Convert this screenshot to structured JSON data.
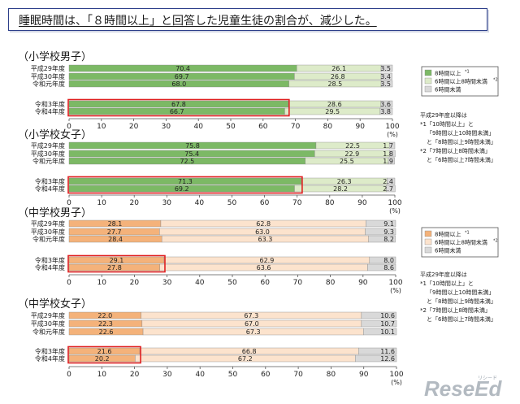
{
  "header": {
    "title": "睡眠時間は、「８時間以上」と回答した児童生徒の割合が、減少した。"
  },
  "chart_data": [
    {
      "type": "bar",
      "stacked": true,
      "orientation": "horizontal",
      "title": "（小学校男子）",
      "categories": [
        "平成29年度",
        "平成30年度",
        "令和元年度",
        "令和3年度",
        "令和4年度"
      ],
      "series": [
        {
          "name": "8時間以上",
          "values": [
            70.4,
            69.7,
            68.0,
            67.8,
            66.7
          ]
        },
        {
          "name": "6時間以上8時間未満",
          "values": [
            26.1,
            26.8,
            28.5,
            28.6,
            29.5
          ]
        },
        {
          "name": "6時間未満",
          "values": [
            3.5,
            3.4,
            3.5,
            3.6,
            3.8
          ]
        }
      ],
      "xlim": [
        0,
        100
      ],
      "xticks": [
        "0",
        "10",
        "20",
        "30",
        "40",
        "50",
        "60",
        "70",
        "80",
        "90",
        "100"
      ],
      "xunit": "(%)",
      "highlighted": [
        "令和3年度",
        "令和4年度"
      ]
    },
    {
      "type": "bar",
      "stacked": true,
      "orientation": "horizontal",
      "title": "（小学校女子）",
      "categories": [
        "平成29年度",
        "平成30年度",
        "令和元年度",
        "令和3年度",
        "令和4年度"
      ],
      "series": [
        {
          "name": "8時間以上",
          "values": [
            75.8,
            75.4,
            72.5,
            71.3,
            69.2
          ]
        },
        {
          "name": "6時間以上8時間未満",
          "values": [
            22.5,
            22.9,
            25.5,
            26.3,
            28.2
          ]
        },
        {
          "name": "6時間未満",
          "values": [
            1.7,
            1.8,
            1.9,
            2.4,
            2.7
          ]
        }
      ],
      "xlim": [
        0,
        100
      ],
      "xticks": [
        "0",
        "10",
        "20",
        "30",
        "40",
        "50",
        "60",
        "70",
        "80",
        "90",
        "100"
      ],
      "xunit": "(%)",
      "highlighted": [
        "令和3年度",
        "令和4年度"
      ]
    },
    {
      "type": "bar",
      "stacked": true,
      "orientation": "horizontal",
      "title": "（中学校男子）",
      "categories": [
        "平成29年度",
        "平成30年度",
        "令和元年度",
        "令和3年度",
        "令和4年度"
      ],
      "series": [
        {
          "name": "8時間以上",
          "values": [
            28.1,
            27.7,
            28.4,
            29.1,
            27.8
          ]
        },
        {
          "name": "6時間以上8時間未満",
          "values": [
            62.8,
            63.0,
            63.3,
            62.9,
            63.6
          ]
        },
        {
          "name": "6時間未満",
          "values": [
            9.1,
            9.3,
            8.2,
            8.0,
            8.6
          ]
        }
      ],
      "xlim": [
        0,
        100
      ],
      "xticks": [
        "0",
        "10",
        "20",
        "30",
        "40",
        "50",
        "60",
        "70",
        "80",
        "90",
        "100"
      ],
      "xunit": "(%)",
      "highlighted": [
        "令和3年度",
        "令和4年度"
      ]
    },
    {
      "type": "bar",
      "stacked": true,
      "orientation": "horizontal",
      "title": "（中学校女子）",
      "categories": [
        "平成29年度",
        "平成30年度",
        "令和元年度",
        "令和3年度",
        "令和4年度"
      ],
      "series": [
        {
          "name": "8時間以上",
          "values": [
            22.0,
            22.3,
            22.6,
            21.6,
            20.2
          ]
        },
        {
          "name": "6時間以上8時間未満",
          "values": [
            67.3,
            67.0,
            67.3,
            66.8,
            67.2
          ]
        },
        {
          "name": "6時間未満",
          "values": [
            10.6,
            10.7,
            10.1,
            11.6,
            12.6
          ]
        }
      ],
      "xlim": [
        0,
        100
      ],
      "xticks": [
        "0",
        "10",
        "20",
        "30",
        "40",
        "50",
        "60",
        "70",
        "80",
        "90",
        "100"
      ],
      "xunit": "(%)",
      "highlighted": [
        "令和3年度",
        "令和4年度"
      ]
    }
  ],
  "legends": [
    {
      "items": [
        {
          "label": "8時間以上",
          "mark": "*1"
        },
        {
          "label": "6時間以上8時間未満",
          "mark": "*2"
        },
        {
          "label": "6時間未満",
          "mark": ""
        }
      ],
      "note_lines": [
        "平成29年度以降は",
        "*1「10時間以上」と",
        "「9時間以上10時間未満」",
        "と「8時間以上9時間未満」",
        "*2「7時間以上8時間未満」",
        "と「6時間以上7時間未満」"
      ]
    },
    {
      "items": [
        {
          "label": "8時間以上",
          "mark": "*1"
        },
        {
          "label": "6時間以上8時間未満",
          "mark": "*2"
        },
        {
          "label": "6時間未満",
          "mark": ""
        }
      ],
      "note_lines": [
        "平成29年度以降は",
        "*1「10時間以上」と",
        "「9時間以上10時間未満」",
        "と「8時間以上9時間未満」",
        "*2「7時間以上8時間未満」",
        "と「6時間以上7時間未満」"
      ]
    }
  ],
  "colors": {
    "green_dark": "#7cb965",
    "green_light": "#ddebc9",
    "orange_dark": "#f4b27a",
    "orange_light": "#fce3cd",
    "gray": "#d9d9d9",
    "highlight": "#e02020",
    "header_border": "#2d3f8a"
  },
  "watermark": {
    "text": "ReseEd",
    "sub": "リシード"
  }
}
